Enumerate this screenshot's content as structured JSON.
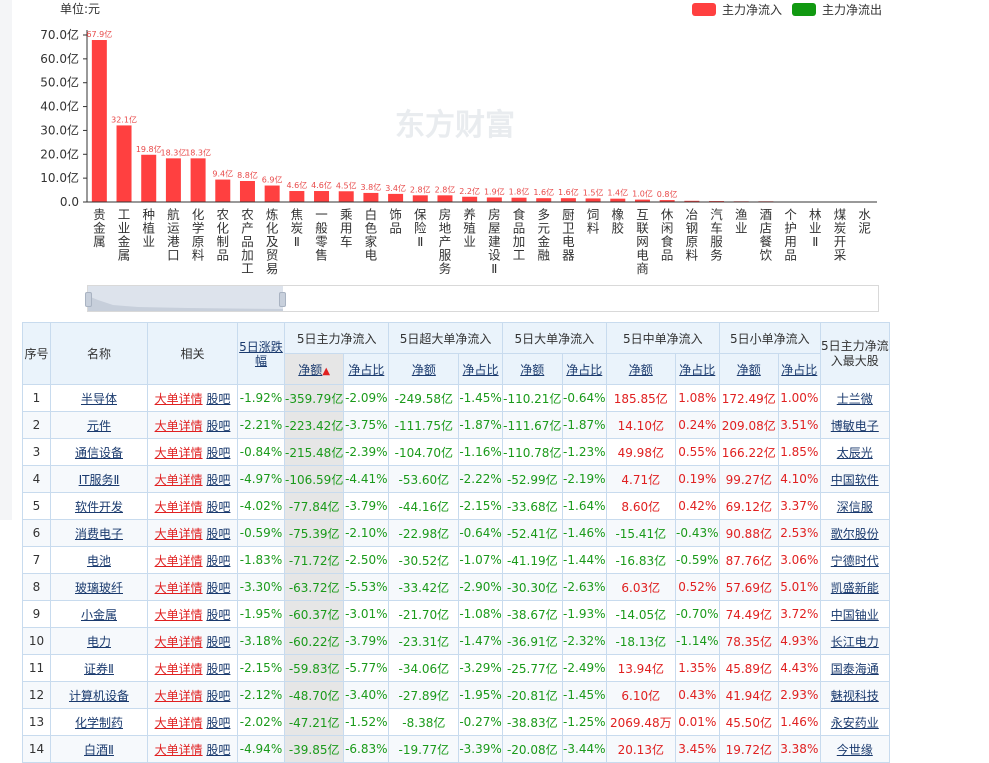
{
  "legend": {
    "inflow": {
      "label": "主力净流入",
      "color": "#ff4040"
    },
    "outflow": {
      "label": "主力净流出",
      "color": "#119911"
    }
  },
  "chart_data": {
    "type": "bar",
    "title": "",
    "unit_label": "单位:元",
    "ylim": [
      0,
      70
    ],
    "yticks": [
      "0.0",
      "10.0亿",
      "20.0亿",
      "30.0亿",
      "40.0亿",
      "50.0亿",
      "60.0亿",
      "70.0亿"
    ],
    "categories": [
      "贵金属",
      "工业金属",
      "种植业",
      "航运港口",
      "化学原料",
      "农化制品",
      "农产品加工",
      "炼化及贸易",
      "焦炭Ⅱ",
      "一般零售",
      "乘用车",
      "白色家电",
      "饰品",
      "保险Ⅱ",
      "房地产服务",
      "养殖业",
      "房屋建设Ⅱ",
      "食品加工",
      "多元金融",
      "厨卫电器",
      "饲料",
      "橡胶",
      "互联网电商",
      "休闲食品",
      "冶钢原料",
      "汽车服务",
      "渔业",
      "酒店餐饮",
      "个护用品",
      "林业Ⅱ",
      "煤炭开采",
      "水泥"
    ],
    "values": [
      67.9,
      32.1,
      19.8,
      18.3,
      18.3,
      9.4,
      8.8,
      6.9,
      4.6,
      4.6,
      4.5,
      3.8,
      3.4,
      2.8,
      2.8,
      2.2,
      1.9,
      1.8,
      1.6,
      1.6,
      1.5,
      1.4,
      1.0,
      0.8,
      0.5,
      0.4,
      0.3,
      0.3,
      0.2,
      0.1,
      0.1,
      0.1
    ],
    "data_labels": [
      "67.9亿",
      "32.1亿",
      "19.8亿",
      "18.3亿",
      "18.3亿",
      "9.4亿",
      "8.8亿",
      "6.9亿",
      "4.6亿",
      "4.6亿",
      "4.5亿",
      "3.8亿",
      "3.4亿",
      "2.8亿",
      "2.8亿",
      "2.2亿",
      "1.9亿",
      "1.8亿",
      "1.6亿",
      "1.6亿",
      "1.5亿",
      "1.4亿",
      "1.0亿",
      "0.8亿",
      "",
      "",
      "",
      "",
      "",
      "",
      "",
      ""
    ],
    "bar_color": "#ff4040",
    "grid": false
  },
  "watermark": "东方财富",
  "table": {
    "headers": {
      "index": "序号",
      "name": "名称",
      "related": "相关",
      "change_5d": "5日涨跌幅",
      "groups": [
        "5日主力净流入",
        "5日超大单净流入",
        "5日大单净流入",
        "5日中单净流入",
        "5日小单净流入"
      ],
      "top_stock": "5日主力净流入最大股",
      "amount": "净额",
      "ratio": "净占比"
    },
    "link_detail": "大单详情",
    "link_bar": "股吧",
    "rows": [
      {
        "idx": "1",
        "name": "半导体",
        "chg": "-1.92%",
        "m": "-359.79亿",
        "mr": "-2.09%",
        "s": "-249.58亿",
        "sr": "-1.45%",
        "b": "-110.21亿",
        "br": "-0.64%",
        "md": "185.85亿",
        "mdr": "1.08%",
        "sm": "172.49亿",
        "smr": "1.00%",
        "top": "士兰微"
      },
      {
        "idx": "2",
        "name": "元件",
        "chg": "-2.21%",
        "m": "-223.42亿",
        "mr": "-3.75%",
        "s": "-111.75亿",
        "sr": "-1.87%",
        "b": "-111.67亿",
        "br": "-1.87%",
        "md": "14.10亿",
        "mdr": "0.24%",
        "sm": "209.08亿",
        "smr": "3.51%",
        "top": "博敏电子"
      },
      {
        "idx": "3",
        "name": "通信设备",
        "chg": "-0.84%",
        "m": "-215.48亿",
        "mr": "-2.39%",
        "s": "-104.70亿",
        "sr": "-1.16%",
        "b": "-110.78亿",
        "br": "-1.23%",
        "md": "49.98亿",
        "mdr": "0.55%",
        "sm": "166.22亿",
        "smr": "1.85%",
        "top": "太辰光"
      },
      {
        "idx": "4",
        "name": "IT服务Ⅱ",
        "chg": "-4.97%",
        "m": "-106.59亿",
        "mr": "-4.41%",
        "s": "-53.60亿",
        "sr": "-2.22%",
        "b": "-52.99亿",
        "br": "-2.19%",
        "md": "4.71亿",
        "mdr": "0.19%",
        "sm": "99.27亿",
        "smr": "4.10%",
        "top": "中国软件"
      },
      {
        "idx": "5",
        "name": "软件开发",
        "chg": "-4.02%",
        "m": "-77.84亿",
        "mr": "-3.79%",
        "s": "-44.16亿",
        "sr": "-2.15%",
        "b": "-33.68亿",
        "br": "-1.64%",
        "md": "8.60亿",
        "mdr": "0.42%",
        "sm": "69.12亿",
        "smr": "3.37%",
        "top": "深信服"
      },
      {
        "idx": "6",
        "name": "消费电子",
        "chg": "-0.59%",
        "m": "-75.39亿",
        "mr": "-2.10%",
        "s": "-22.98亿",
        "sr": "-0.64%",
        "b": "-52.41亿",
        "br": "-1.46%",
        "md": "-15.41亿",
        "mdr": "-0.43%",
        "sm": "90.88亿",
        "smr": "2.53%",
        "top": "歌尔股份"
      },
      {
        "idx": "7",
        "name": "电池",
        "chg": "-1.83%",
        "m": "-71.72亿",
        "mr": "-2.50%",
        "s": "-30.52亿",
        "sr": "-1.07%",
        "b": "-41.19亿",
        "br": "-1.44%",
        "md": "-16.83亿",
        "mdr": "-0.59%",
        "sm": "87.76亿",
        "smr": "3.06%",
        "top": "宁德时代"
      },
      {
        "idx": "8",
        "name": "玻璃玻纤",
        "chg": "-3.30%",
        "m": "-63.72亿",
        "mr": "-5.53%",
        "s": "-33.42亿",
        "sr": "-2.90%",
        "b": "-30.30亿",
        "br": "-2.63%",
        "md": "6.03亿",
        "mdr": "0.52%",
        "sm": "57.69亿",
        "smr": "5.01%",
        "top": "凯盛新能"
      },
      {
        "idx": "9",
        "name": "小金属",
        "chg": "-1.95%",
        "m": "-60.37亿",
        "mr": "-3.01%",
        "s": "-21.70亿",
        "sr": "-1.08%",
        "b": "-38.67亿",
        "br": "-1.93%",
        "md": "-14.05亿",
        "mdr": "-0.70%",
        "sm": "74.49亿",
        "smr": "3.72%",
        "top": "中国铀业"
      },
      {
        "idx": "10",
        "name": "电力",
        "chg": "-3.18%",
        "m": "-60.22亿",
        "mr": "-3.79%",
        "s": "-23.31亿",
        "sr": "-1.47%",
        "b": "-36.91亿",
        "br": "-2.32%",
        "md": "-18.13亿",
        "mdr": "-1.14%",
        "sm": "78.35亿",
        "smr": "4.93%",
        "top": "长江电力"
      },
      {
        "idx": "11",
        "name": "证券Ⅱ",
        "chg": "-2.15%",
        "m": "-59.83亿",
        "mr": "-5.77%",
        "s": "-34.06亿",
        "sr": "-3.29%",
        "b": "-25.77亿",
        "br": "-2.49%",
        "md": "13.94亿",
        "mdr": "1.35%",
        "sm": "45.89亿",
        "smr": "4.43%",
        "top": "国泰海通"
      },
      {
        "idx": "12",
        "name": "计算机设备",
        "chg": "-2.12%",
        "m": "-48.70亿",
        "mr": "-3.40%",
        "s": "-27.89亿",
        "sr": "-1.95%",
        "b": "-20.81亿",
        "br": "-1.45%",
        "md": "6.10亿",
        "mdr": "0.43%",
        "sm": "41.94亿",
        "smr": "2.93%",
        "top": "魅视科技"
      },
      {
        "idx": "13",
        "name": "化学制药",
        "chg": "-2.02%",
        "m": "-47.21亿",
        "mr": "-1.52%",
        "s": "-8.38亿",
        "sr": "-0.27%",
        "b": "-38.83亿",
        "br": "-1.25%",
        "md": "2069.48万",
        "mdr": "0.01%",
        "sm": "45.50亿",
        "smr": "1.46%",
        "top": "永安药业"
      },
      {
        "idx": "14",
        "name": "白酒Ⅱ",
        "chg": "-4.94%",
        "m": "-39.85亿",
        "mr": "-6.83%",
        "s": "-19.77亿",
        "sr": "-3.39%",
        "b": "-20.08亿",
        "br": "-3.44%",
        "md": "20.13亿",
        "mdr": "3.45%",
        "sm": "19.72亿",
        "smr": "3.38%",
        "top": "今世缘"
      }
    ]
  }
}
